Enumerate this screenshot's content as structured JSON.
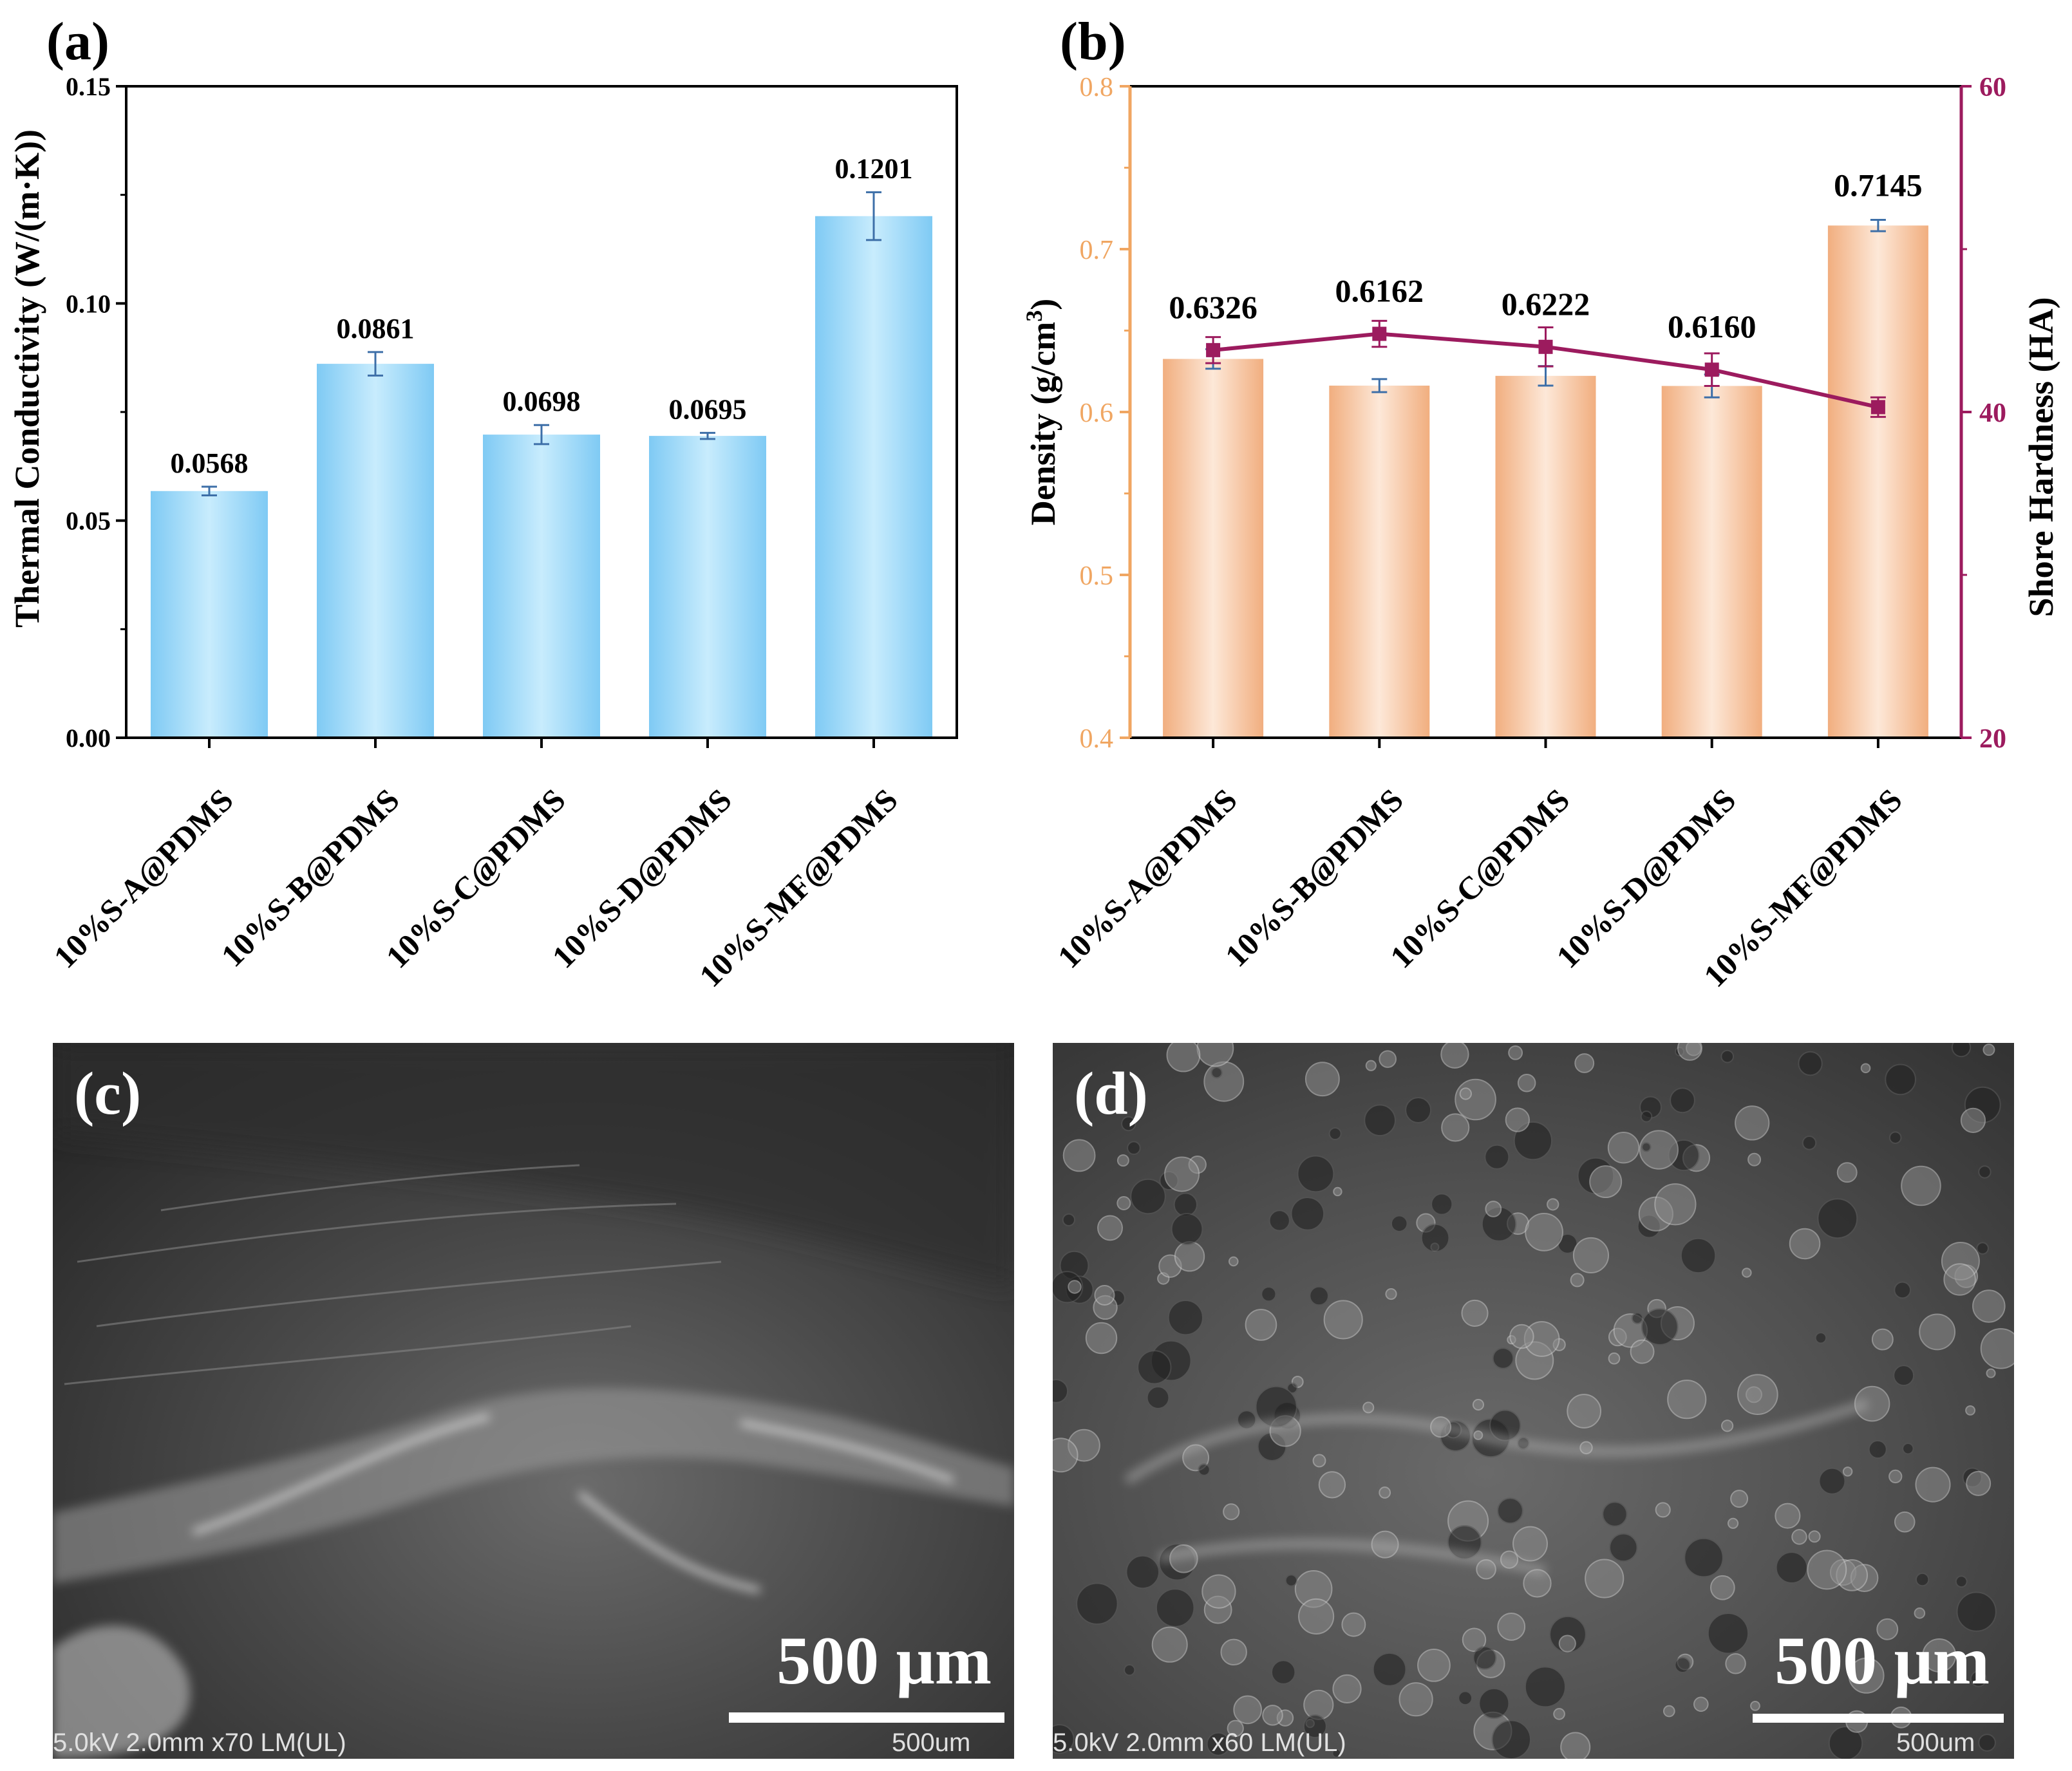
{
  "panels": {
    "a_label": "(a)",
    "b_label": "(b)",
    "c_label": "(c)",
    "d_label": "(d)"
  },
  "chart_data": [
    {
      "type": "bar",
      "panel": "(a)",
      "categories": [
        "10%S-A@PDMS",
        "10%S-B@PDMS",
        "10%S-C@PDMS",
        "10%S-D@PDMS",
        "10%S-MF@PDMS"
      ],
      "values": [
        0.0568,
        0.0861,
        0.0698,
        0.0695,
        0.1201
      ],
      "errors": [
        0.001,
        0.0027,
        0.0022,
        0.0007,
        0.0055
      ],
      "value_labels": [
        "0.0568",
        "0.0861",
        "0.0698",
        "0.0695",
        "0.1201"
      ],
      "ylabel": "Thermal Conductivity (W/(m·K))",
      "ylim": [
        0,
        0.15
      ],
      "yticks": [
        0.0,
        0.05,
        0.1,
        0.15
      ],
      "ytick_labels": [
        "0.00",
        "0.05",
        "0.10",
        "0.15"
      ],
      "bar_color": "#8dd2f7",
      "error_color": "#3d6fa8"
    },
    {
      "type": "bar+line",
      "panel": "(b)",
      "categories": [
        "10%S-A@PDMS",
        "10%S-B@PDMS",
        "10%S-C@PDMS",
        "10%S-D@PDMS",
        "10%S-MF@PDMS"
      ],
      "series": [
        {
          "axis": "left",
          "type": "bar",
          "values": [
            0.6326,
            0.6162,
            0.6222,
            0.616,
            0.7145
          ],
          "errors": [
            0.006,
            0.004,
            0.006,
            0.007,
            0.0035
          ],
          "value_labels": [
            "0.6326",
            "0.6162",
            "0.6222",
            "0.6160",
            "0.7145"
          ],
          "color": "#f2b48a"
        },
        {
          "axis": "right",
          "type": "line",
          "values": [
            43.8,
            44.8,
            44.0,
            42.6,
            40.3
          ],
          "errors": [
            0.8,
            0.8,
            1.2,
            1.0,
            0.6
          ],
          "color": "#9c1b5e"
        }
      ],
      "ylabel_left": "Density (g/cm³)",
      "ylabel_right": "Shore Hardness (HA)",
      "ylim_left": [
        0.4,
        0.8
      ],
      "yticks_left": [
        "0.4",
        "0.5",
        "0.6",
        "0.7",
        "0.8"
      ],
      "ylim_right": [
        20,
        60
      ],
      "yticks_right": [
        "20",
        "40",
        "60"
      ],
      "left_axis_color": "#f0a662",
      "right_axis_color": "#9c1b5e"
    }
  ],
  "sem_c": {
    "scale_text": "500 μm",
    "info": "5.0kV 2.0mm x70 LM(UL)",
    "bar_label": "500um"
  },
  "sem_d": {
    "scale_text": "500 μm",
    "info": "5.0kV 2.0mm x60 LM(UL)",
    "bar_label": "500um"
  }
}
